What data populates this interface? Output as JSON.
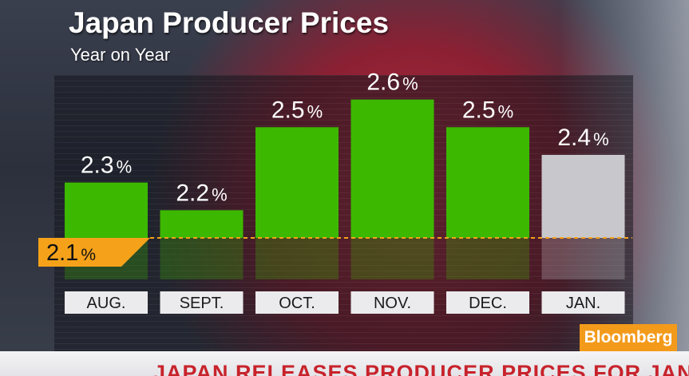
{
  "header": {
    "title": "Japan Producer Prices",
    "subtitle": "Year on Year"
  },
  "brand": {
    "label": "Bloomberg"
  },
  "ticker": {
    "headline": "JAPAN RELEASES PRODUCER PRICES FOR JAN"
  },
  "colors": {
    "actual": "#3cb800",
    "forecast": "#c8c8cc",
    "baseline": "#f5a21a"
  },
  "chart_data": {
    "type": "bar",
    "title": "Japan Producer Prices",
    "subtitle": "Year on Year",
    "categories": [
      "AUG.",
      "SEPT.",
      "OCT.",
      "NOV.",
      "DEC.",
      "JAN."
    ],
    "values": [
      2.3,
      2.2,
      2.5,
      2.6,
      2.5,
      2.4
    ],
    "value_labels": [
      "2.3",
      "2.2",
      "2.5",
      "2.6",
      "2.5",
      "2.4"
    ],
    "value_suffix": "%",
    "bar_status": [
      "actual",
      "actual",
      "actual",
      "actual",
      "actual",
      "forecast"
    ],
    "baseline": {
      "value": 2.1,
      "label": "2.1",
      "suffix": "%"
    },
    "ylim": [
      1.95,
      2.7
    ],
    "grid": true,
    "legend": "none"
  }
}
